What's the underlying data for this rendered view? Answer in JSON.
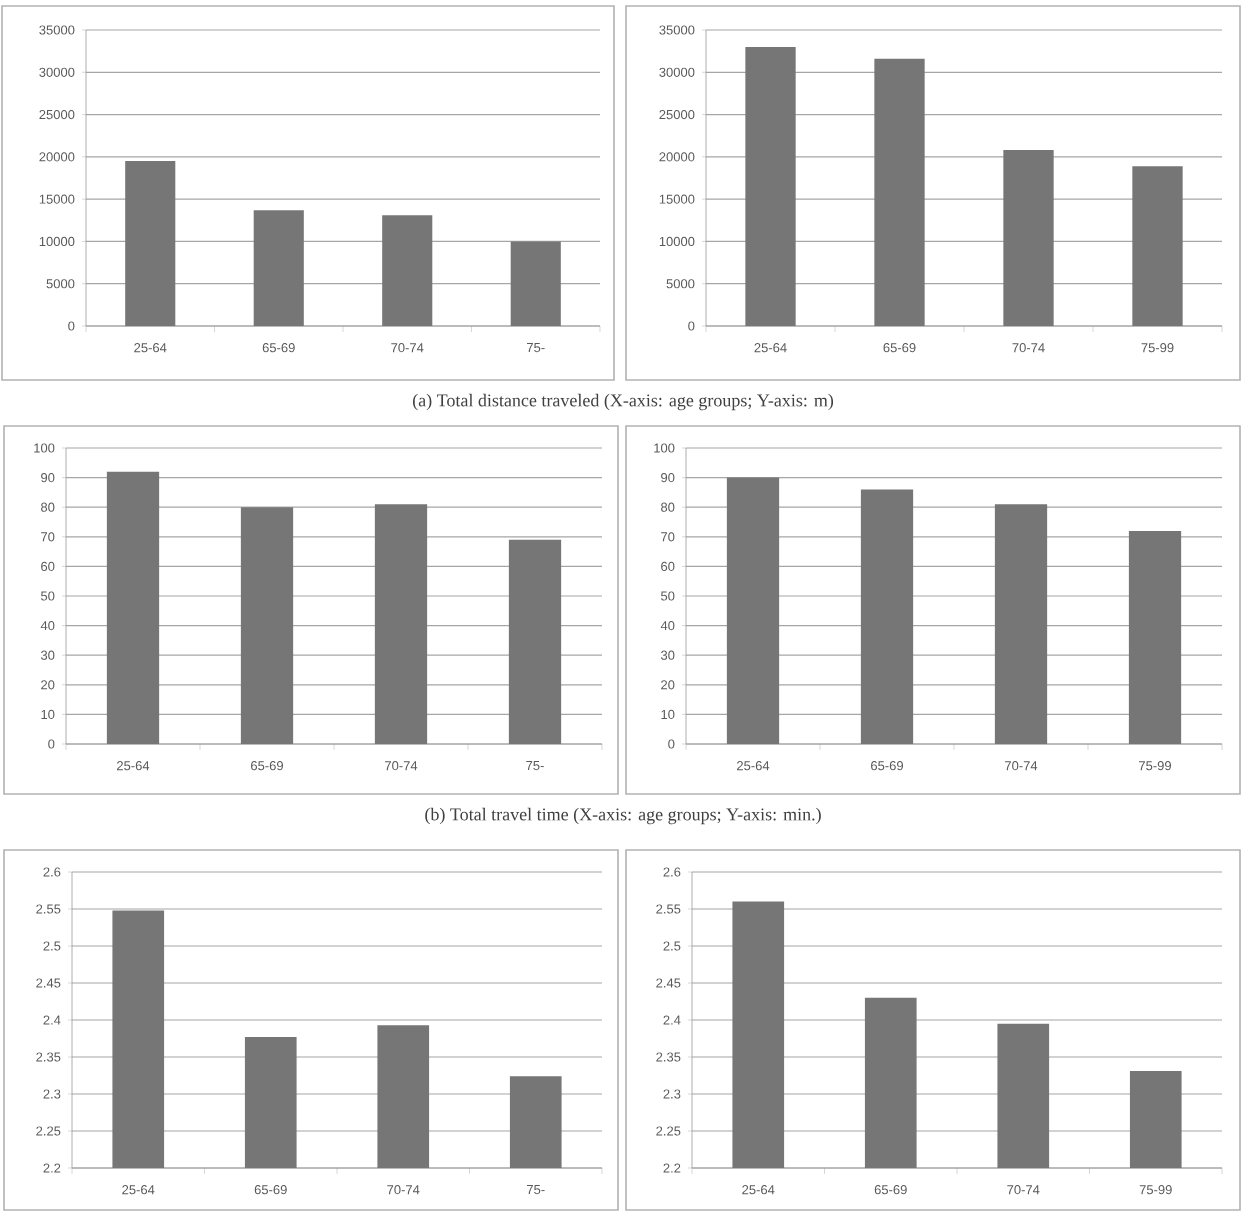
{
  "chart_data": [
    {
      "type": "bar",
      "categories": [
        "25-64",
        "65-69",
        "70-74",
        "75-"
      ],
      "values": [
        19500,
        13700,
        13100,
        10000
      ],
      "color": "#767676",
      "ylim": [
        0,
        35000
      ],
      "yticks": [
        0,
        5000,
        10000,
        15000,
        20000,
        25000,
        30000,
        35000
      ],
      "grid": "y",
      "annotations": [
        "(a) Total distance traveled (X-axis: age groups; Y-axis: m)"
      ]
    },
    {
      "type": "bar",
      "categories": [
        "25-64",
        "65-69",
        "70-74",
        "75-99"
      ],
      "values": [
        33000,
        31600,
        20800,
        18900
      ],
      "color": "#767676",
      "ylim": [
        0,
        35000
      ],
      "yticks": [
        0,
        5000,
        10000,
        15000,
        20000,
        25000,
        30000,
        35000
      ],
      "grid": "y"
    },
    {
      "type": "bar",
      "categories": [
        "25-64",
        "65-69",
        "70-74",
        "75-"
      ],
      "values": [
        92,
        80,
        81,
        69
      ],
      "color": "#767676",
      "ylim": [
        0,
        100
      ],
      "yticks": [
        0,
        10,
        20,
        30,
        40,
        50,
        60,
        70,
        80,
        90,
        100
      ],
      "grid": "y",
      "annotations": [
        "(b) Total travel time (X-axis: age groups; Y-axis: min.)"
      ]
    },
    {
      "type": "bar",
      "categories": [
        "25-64",
        "65-69",
        "70-74",
        "75-99"
      ],
      "values": [
        90,
        86,
        81,
        72
      ],
      "color": "#767676",
      "ylim": [
        0,
        100
      ],
      "yticks": [
        0,
        10,
        20,
        30,
        40,
        50,
        60,
        70,
        80,
        90,
        100
      ],
      "grid": "y"
    },
    {
      "type": "bar",
      "categories": [
        "25-64",
        "65-69",
        "70-74",
        "75-"
      ],
      "values": [
        2.548,
        2.377,
        2.393,
        2.324
      ],
      "color": "#767676",
      "ylim": [
        2.2,
        2.6
      ],
      "yticks": [
        2.2,
        2.25,
        2.3,
        2.35,
        2.4,
        2.45,
        2.5,
        2.55,
        2.6
      ],
      "grid": "y"
    },
    {
      "type": "bar",
      "categories": [
        "25-64",
        "65-69",
        "70-74",
        "75-99"
      ],
      "values": [
        2.56,
        2.43,
        2.395,
        2.331
      ],
      "color": "#767676",
      "ylim": [
        2.2,
        2.6
      ],
      "yticks": [
        2.2,
        2.25,
        2.3,
        2.35,
        2.4,
        2.45,
        2.5,
        2.55,
        2.6
      ],
      "grid": "y"
    }
  ]
}
